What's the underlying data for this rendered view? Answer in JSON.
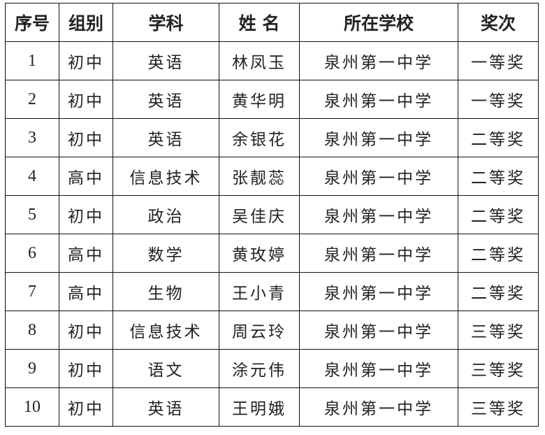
{
  "headers": [
    "序号",
    "组别",
    "学科",
    "姓 名",
    "所在学校",
    "奖次"
  ],
  "rows": [
    [
      "1",
      "初中",
      "英语",
      "林凤玉",
      "泉州第一中学",
      "一等奖"
    ],
    [
      "2",
      "初中",
      "英语",
      "黄华明",
      "泉州第一中学",
      "一等奖"
    ],
    [
      "3",
      "初中",
      "英语",
      "余银花",
      "泉州第一中学",
      "二等奖"
    ],
    [
      "4",
      "高中",
      "信息技术",
      "张靓蕊",
      "泉州第一中学",
      "二等奖"
    ],
    [
      "5",
      "初中",
      "政治",
      "吴佳庆",
      "泉州第一中学",
      "二等奖"
    ],
    [
      "6",
      "高中",
      "数学",
      "黄玫婷",
      "泉州第一中学",
      "二等奖"
    ],
    [
      "7",
      "高中",
      "生物",
      "王小青",
      "泉州第一中学",
      "二等奖"
    ],
    [
      "8",
      "初中",
      "信息技术",
      "周云玲",
      "泉州第一中学",
      "三等奖"
    ],
    [
      "9",
      "初中",
      "语文",
      "涂元伟",
      "泉州第一中学",
      "三等奖"
    ],
    [
      "10",
      "初中",
      "英语",
      "王明娥",
      "泉州第一中学",
      "三等奖"
    ]
  ]
}
